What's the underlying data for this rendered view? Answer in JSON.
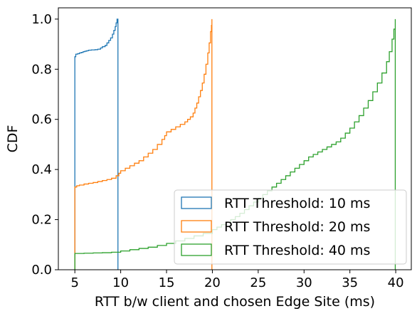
{
  "chart_data": {
    "type": "line",
    "step": true,
    "xlabel": "RTT b/w client and chosen Edge Site (ms)",
    "ylabel": "CDF",
    "xlim": [
      3.2,
      41.7
    ],
    "ylim": [
      0.0,
      1.045
    ],
    "xticks": [
      5,
      10,
      15,
      20,
      25,
      30,
      35,
      40
    ],
    "yticks": [
      0.0,
      0.2,
      0.4,
      0.6,
      0.8,
      1.0
    ],
    "xtick_labels": [
      "5",
      "10",
      "15",
      "20",
      "25",
      "30",
      "35",
      "40"
    ],
    "ytick_labels": [
      "0.0",
      "0.2",
      "0.4",
      "0.6",
      "0.8",
      "1.0"
    ],
    "grid": false,
    "legend": {
      "position": "bottom-right"
    },
    "series": [
      {
        "name": "RTT Threshold: 10 ms",
        "color": "#1f77b4",
        "x_end": 9.7,
        "points": [
          [
            5.0,
            0.85
          ],
          [
            5.1,
            0.86
          ],
          [
            5.3,
            0.862
          ],
          [
            5.5,
            0.865
          ],
          [
            5.7,
            0.867
          ],
          [
            5.9,
            0.87
          ],
          [
            6.1,
            0.872
          ],
          [
            6.3,
            0.874
          ],
          [
            6.5,
            0.876
          ],
          [
            6.8,
            0.877
          ],
          [
            7.2,
            0.878
          ],
          [
            7.5,
            0.88
          ],
          [
            7.8,
            0.885
          ],
          [
            8.0,
            0.89
          ],
          [
            8.3,
            0.895
          ],
          [
            8.5,
            0.905
          ],
          [
            8.7,
            0.915
          ],
          [
            8.9,
            0.925
          ],
          [
            9.1,
            0.94
          ],
          [
            9.25,
            0.955
          ],
          [
            9.4,
            0.97
          ],
          [
            9.5,
            0.985
          ],
          [
            9.6,
            1.0
          ]
        ]
      },
      {
        "name": "RTT Threshold: 20 ms",
        "color": "#ff7f0e",
        "x_end": 19.95,
        "points": [
          [
            5.0,
            0.33
          ],
          [
            5.2,
            0.335
          ],
          [
            5.5,
            0.338
          ],
          [
            6.0,
            0.342
          ],
          [
            6.5,
            0.345
          ],
          [
            7.0,
            0.348
          ],
          [
            7.5,
            0.352
          ],
          [
            8.0,
            0.356
          ],
          [
            8.5,
            0.36
          ],
          [
            9.0,
            0.365
          ],
          [
            9.5,
            0.375
          ],
          [
            9.8,
            0.385
          ],
          [
            10.0,
            0.395
          ],
          [
            10.5,
            0.405
          ],
          [
            11.0,
            0.415
          ],
          [
            11.5,
            0.425
          ],
          [
            12.0,
            0.435
          ],
          [
            12.5,
            0.45
          ],
          [
            13.0,
            0.465
          ],
          [
            13.5,
            0.48
          ],
          [
            14.0,
            0.5
          ],
          [
            14.5,
            0.52
          ],
          [
            14.8,
            0.535
          ],
          [
            15.0,
            0.55
          ],
          [
            15.5,
            0.56
          ],
          [
            16.0,
            0.57
          ],
          [
            16.5,
            0.58
          ],
          [
            17.0,
            0.59
          ],
          [
            17.3,
            0.6
          ],
          [
            17.6,
            0.61
          ],
          [
            17.9,
            0.625
          ],
          [
            18.1,
            0.645
          ],
          [
            18.3,
            0.665
          ],
          [
            18.5,
            0.69
          ],
          [
            18.7,
            0.715
          ],
          [
            18.9,
            0.745
          ],
          [
            19.1,
            0.78
          ],
          [
            19.3,
            0.82
          ],
          [
            19.5,
            0.865
          ],
          [
            19.65,
            0.905
          ],
          [
            19.8,
            0.95
          ],
          [
            19.9,
            0.975
          ],
          [
            19.95,
            1.0
          ]
        ]
      },
      {
        "name": "RTT Threshold: 40 ms",
        "color": "#2ca02c",
        "x_end": 39.95,
        "points": [
          [
            5.0,
            0.065
          ],
          [
            6.0,
            0.066
          ],
          [
            7.0,
            0.067
          ],
          [
            8.0,
            0.068
          ],
          [
            9.0,
            0.07
          ],
          [
            10.0,
            0.075
          ],
          [
            11.0,
            0.08
          ],
          [
            12.0,
            0.085
          ],
          [
            13.0,
            0.09
          ],
          [
            14.0,
            0.097
          ],
          [
            15.0,
            0.105
          ],
          [
            16.0,
            0.115
          ],
          [
            17.0,
            0.125
          ],
          [
            18.0,
            0.135
          ],
          [
            19.0,
            0.145
          ],
          [
            20.0,
            0.16
          ],
          [
            20.5,
            0.17
          ],
          [
            21.0,
            0.18
          ],
          [
            21.5,
            0.19
          ],
          [
            22.0,
            0.2
          ],
          [
            22.5,
            0.212
          ],
          [
            23.0,
            0.225
          ],
          [
            23.5,
            0.24
          ],
          [
            24.0,
            0.255
          ],
          [
            24.5,
            0.27
          ],
          [
            25.0,
            0.285
          ],
          [
            25.5,
            0.3
          ],
          [
            26.0,
            0.315
          ],
          [
            26.5,
            0.33
          ],
          [
            27.0,
            0.345
          ],
          [
            27.5,
            0.36
          ],
          [
            28.0,
            0.375
          ],
          [
            28.5,
            0.39
          ],
          [
            29.0,
            0.405
          ],
          [
            29.5,
            0.42
          ],
          [
            30.0,
            0.435
          ],
          [
            30.5,
            0.45
          ],
          [
            31.0,
            0.46
          ],
          [
            31.5,
            0.47
          ],
          [
            32.0,
            0.48
          ],
          [
            32.5,
            0.49
          ],
          [
            33.0,
            0.5
          ],
          [
            33.5,
            0.51
          ],
          [
            34.0,
            0.525
          ],
          [
            34.5,
            0.545
          ],
          [
            35.0,
            0.565
          ],
          [
            35.5,
            0.59
          ],
          [
            36.0,
            0.615
          ],
          [
            36.5,
            0.645
          ],
          [
            37.0,
            0.675
          ],
          [
            37.5,
            0.71
          ],
          [
            38.0,
            0.745
          ],
          [
            38.5,
            0.785
          ],
          [
            39.0,
            0.83
          ],
          [
            39.3,
            0.87
          ],
          [
            39.6,
            0.92
          ],
          [
            39.8,
            0.96
          ],
          [
            39.95,
            1.0
          ]
        ]
      }
    ]
  }
}
